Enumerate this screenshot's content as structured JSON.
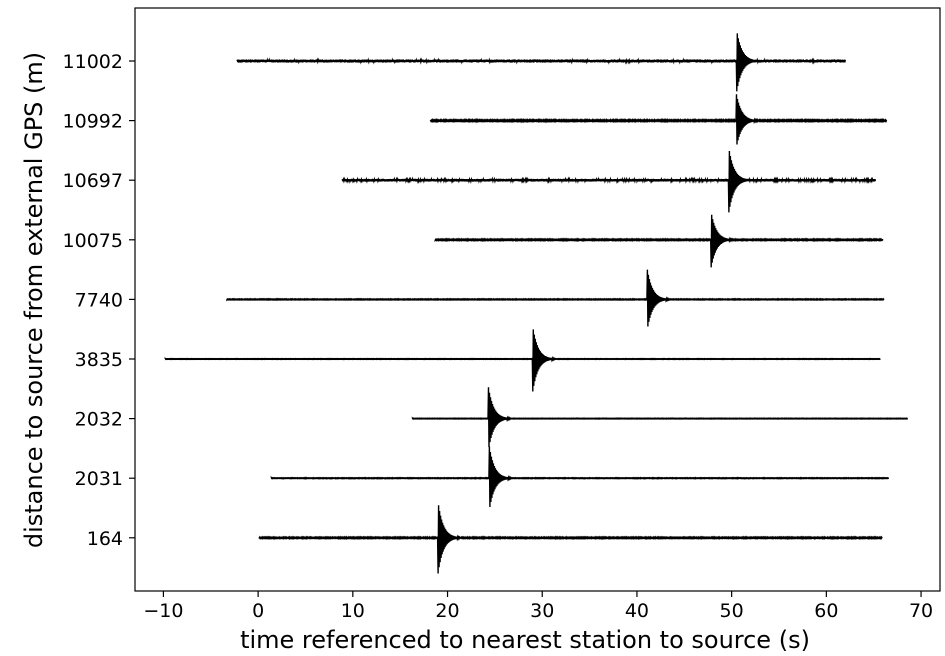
{
  "chart_data": {
    "type": "line",
    "title": "",
    "xlabel": "time referenced to nearest station to source (s)",
    "ylabel": "distance to source from external GPS (m)",
    "xlim": [
      -13,
      72
    ],
    "xticks": [
      -10,
      0,
      10,
      20,
      30,
      40,
      50,
      60,
      70
    ],
    "xtick_labels": [
      "−10",
      "0",
      "10",
      "20",
      "30",
      "40",
      "50",
      "60",
      "70"
    ],
    "grid": false,
    "legend": "none",
    "line_color": "#000000",
    "series": [
      {
        "label": "11002",
        "start": -2.2,
        "end": 62.0,
        "arrival": 50.5,
        "amplitude": 0.55,
        "noise": 0.25
      },
      {
        "label": "10992",
        "start": 18.2,
        "end": 66.4,
        "arrival": 50.5,
        "amplitude": 0.45,
        "noise": 0.12
      },
      {
        "label": "10697",
        "start": 8.9,
        "end": 65.2,
        "arrival": 49.7,
        "amplitude": 0.55,
        "noise": 0.22
      },
      {
        "label": "10075",
        "start": 18.7,
        "end": 66.0,
        "arrival": 47.8,
        "amplitude": 0.5,
        "noise": 0.1
      },
      {
        "label": "7740",
        "start": -3.3,
        "end": 66.1,
        "arrival": 41.1,
        "amplitude": 0.5,
        "noise": 0.07
      },
      {
        "label": "3835",
        "start": -9.8,
        "end": 65.7,
        "arrival": 29.0,
        "amplitude": 0.55,
        "noise": 0.05
      },
      {
        "label": "2032",
        "start": 16.3,
        "end": 68.6,
        "arrival": 24.3,
        "amplitude": 0.55,
        "noise": 0.05
      },
      {
        "label": "2031",
        "start": 1.4,
        "end": 66.6,
        "arrival": 24.4,
        "amplitude": 0.55,
        "noise": 0.06
      },
      {
        "label": "164",
        "start": 0.1,
        "end": 65.9,
        "arrival": 19.0,
        "amplitude": 0.6,
        "noise": 0.1
      }
    ]
  }
}
